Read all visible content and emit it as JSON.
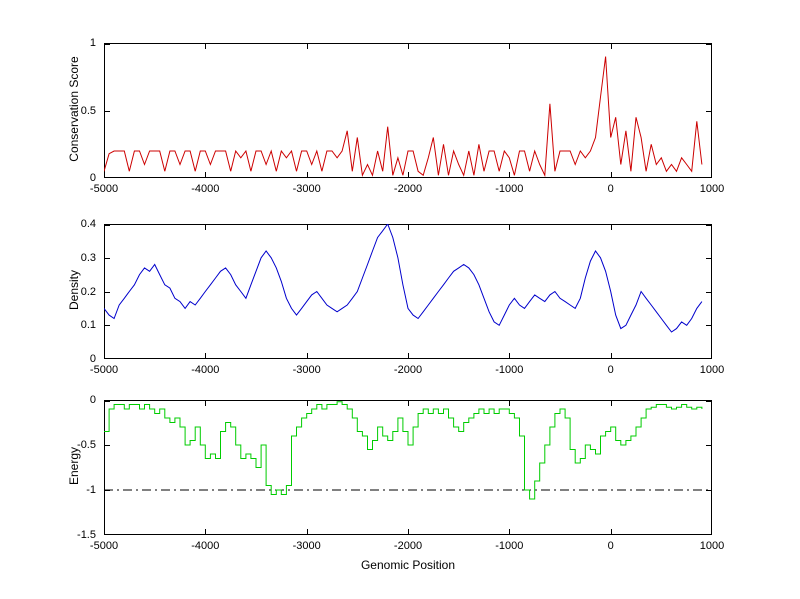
{
  "figure": {
    "background": "#ffffff",
    "axes_color": "#000000"
  },
  "chart_data": [
    {
      "type": "line",
      "title": "",
      "ylabel": "Conservation Score",
      "xlabel": "",
      "color": "#cc0000",
      "xlim": [
        -5000,
        1000
      ],
      "ylim": [
        0,
        1
      ],
      "xticks": [
        -5000,
        -4000,
        -3000,
        -2000,
        -1000,
        0,
        1000
      ],
      "xtick_labels": [
        "-5000",
        "-4000",
        "-3000",
        "-2000",
        "-1000",
        "0",
        "1000"
      ],
      "yticks": [
        0,
        0.5,
        1
      ],
      "ytick_labels": [
        "0",
        "0.5",
        "1"
      ],
      "x_start": -5000,
      "x_step": 50,
      "step": false,
      "values": [
        0.05,
        0.18,
        0.2,
        0.2,
        0.2,
        0.05,
        0.2,
        0.2,
        0.1,
        0.2,
        0.2,
        0.2,
        0.05,
        0.2,
        0.2,
        0.1,
        0.2,
        0.2,
        0.05,
        0.2,
        0.2,
        0.1,
        0.2,
        0.2,
        0.2,
        0.05,
        0.2,
        0.15,
        0.2,
        0.05,
        0.2,
        0.2,
        0.1,
        0.2,
        0.05,
        0.2,
        0.15,
        0.2,
        0.05,
        0.2,
        0.2,
        0.1,
        0.2,
        0.05,
        0.2,
        0.2,
        0.15,
        0.2,
        0.35,
        0.05,
        0.3,
        0.02,
        0.1,
        0.02,
        0.2,
        0.05,
        0.38,
        0.02,
        0.15,
        0.02,
        0.2,
        0.2,
        0.05,
        0.02,
        0.15,
        0.3,
        0.02,
        0.25,
        0.02,
        0.2,
        0.1,
        0.02,
        0.2,
        0.02,
        0.25,
        0.05,
        0.2,
        0.2,
        0.05,
        0.2,
        0.15,
        0.02,
        0.2,
        0.2,
        0.05,
        0.2,
        0.1,
        0.02,
        0.55,
        0.05,
        0.2,
        0.2,
        0.2,
        0.1,
        0.2,
        0.15,
        0.2,
        0.3,
        0.6,
        0.9,
        0.3,
        0.45,
        0.1,
        0.35,
        0.05,
        0.45,
        0.3,
        0.05,
        0.25,
        0.1,
        0.15,
        0.05,
        0.1,
        0.05,
        0.15,
        0.1,
        0.05,
        0.42,
        0.1
      ]
    },
    {
      "type": "line",
      "title": "",
      "ylabel": "Density",
      "xlabel": "",
      "color": "#0000cc",
      "xlim": [
        -5000,
        1000
      ],
      "ylim": [
        0,
        0.4
      ],
      "xticks": [
        -5000,
        -4000,
        -3000,
        -2000,
        -1000,
        0,
        1000
      ],
      "xtick_labels": [
        "-5000",
        "-4000",
        "-3000",
        "-2000",
        "-1000",
        "0",
        "1000"
      ],
      "yticks": [
        0,
        0.1,
        0.2,
        0.3,
        0.4
      ],
      "ytick_labels": [
        "0",
        "0.1",
        "0.2",
        "0.3",
        "0.4"
      ],
      "x_start": -5000,
      "x_step": 50,
      "step": false,
      "values": [
        0.15,
        0.13,
        0.12,
        0.16,
        0.18,
        0.2,
        0.22,
        0.25,
        0.27,
        0.26,
        0.28,
        0.25,
        0.22,
        0.21,
        0.18,
        0.17,
        0.15,
        0.17,
        0.16,
        0.18,
        0.2,
        0.22,
        0.24,
        0.26,
        0.27,
        0.25,
        0.22,
        0.2,
        0.18,
        0.22,
        0.26,
        0.3,
        0.32,
        0.3,
        0.27,
        0.23,
        0.18,
        0.15,
        0.13,
        0.15,
        0.17,
        0.19,
        0.2,
        0.18,
        0.16,
        0.15,
        0.14,
        0.15,
        0.16,
        0.18,
        0.2,
        0.24,
        0.28,
        0.32,
        0.36,
        0.38,
        0.4,
        0.36,
        0.3,
        0.22,
        0.15,
        0.13,
        0.12,
        0.14,
        0.16,
        0.18,
        0.2,
        0.22,
        0.24,
        0.26,
        0.27,
        0.28,
        0.27,
        0.25,
        0.22,
        0.18,
        0.14,
        0.11,
        0.1,
        0.13,
        0.16,
        0.18,
        0.16,
        0.15,
        0.17,
        0.19,
        0.18,
        0.17,
        0.19,
        0.2,
        0.18,
        0.17,
        0.16,
        0.15,
        0.18,
        0.24,
        0.29,
        0.32,
        0.3,
        0.26,
        0.2,
        0.13,
        0.09,
        0.1,
        0.13,
        0.16,
        0.2,
        0.18,
        0.16,
        0.14,
        0.12,
        0.1,
        0.08,
        0.09,
        0.11,
        0.1,
        0.12,
        0.15,
        0.17
      ]
    },
    {
      "type": "line",
      "title": "",
      "ylabel": "Energy",
      "xlabel": "Genomic Position",
      "color": "#00cc00",
      "xlim": [
        -5000,
        1000
      ],
      "ylim": [
        -1.5,
        0
      ],
      "xticks": [
        -5000,
        -4000,
        -3000,
        -2000,
        -1000,
        0,
        1000
      ],
      "xtick_labels": [
        "-5000",
        "-4000",
        "-3000",
        "-2000",
        "-1000",
        "0",
        "1000"
      ],
      "yticks": [
        0,
        -0.5,
        -1,
        -1.5
      ],
      "ytick_labels": [
        "0",
        "-0.5",
        "-1",
        "-1.5"
      ],
      "x_start": -5000,
      "x_step": 50,
      "step": true,
      "reference_line": {
        "y": -1,
        "style": "dash-dot",
        "color": "#000000"
      },
      "values": [
        -0.35,
        -0.1,
        -0.05,
        -0.05,
        -0.1,
        -0.05,
        -0.05,
        -0.1,
        -0.05,
        -0.1,
        -0.15,
        -0.1,
        -0.2,
        -0.25,
        -0.2,
        -0.3,
        -0.5,
        -0.45,
        -0.3,
        -0.5,
        -0.65,
        -0.6,
        -0.65,
        -0.35,
        -0.25,
        -0.3,
        -0.5,
        -0.65,
        -0.6,
        -0.65,
        -0.75,
        -0.5,
        -0.95,
        -1.05,
        -1.0,
        -1.05,
        -0.95,
        -0.4,
        -0.3,
        -0.2,
        -0.15,
        -0.1,
        -0.05,
        -0.1,
        -0.05,
        -0.05,
        -0.02,
        -0.05,
        -0.1,
        -0.2,
        -0.35,
        -0.4,
        -0.55,
        -0.45,
        -0.3,
        -0.4,
        -0.45,
        -0.35,
        -0.2,
        -0.35,
        -0.5,
        -0.3,
        -0.15,
        -0.1,
        -0.15,
        -0.1,
        -0.15,
        -0.1,
        -0.2,
        -0.3,
        -0.35,
        -0.25,
        -0.2,
        -0.15,
        -0.1,
        -0.15,
        -0.1,
        -0.15,
        -0.1,
        -0.1,
        -0.15,
        -0.2,
        -0.4,
        -1.0,
        -1.1,
        -0.9,
        -0.7,
        -0.5,
        -0.3,
        -0.15,
        -0.1,
        -0.2,
        -0.55,
        -0.7,
        -0.65,
        -0.5,
        -0.55,
        -0.6,
        -0.4,
        -0.35,
        -0.3,
        -0.45,
        -0.5,
        -0.45,
        -0.4,
        -0.3,
        -0.2,
        -0.1,
        -0.08,
        -0.05,
        -0.05,
        -0.08,
        -0.1,
        -0.08,
        -0.05,
        -0.08,
        -0.1,
        -0.08,
        -0.1
      ]
    }
  ]
}
